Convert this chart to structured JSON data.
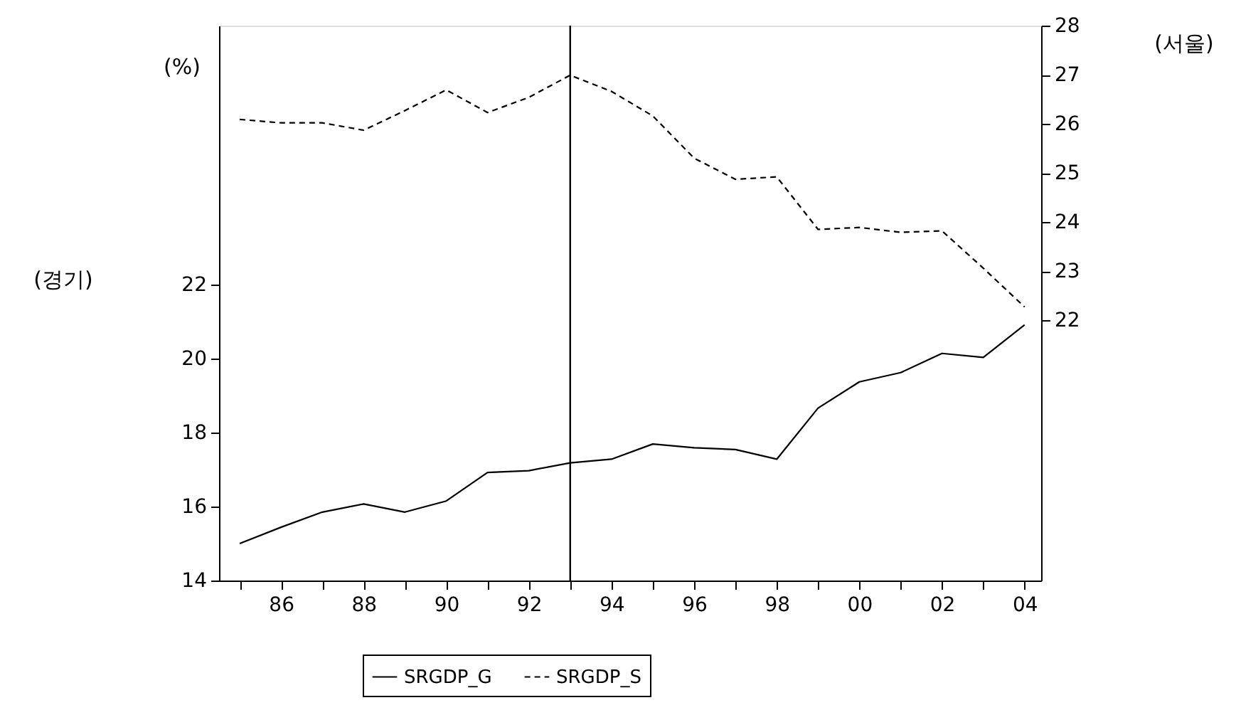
{
  "chart_data": {
    "type": "line",
    "ylabel": "(경기)",
    "y2label": "(서울)",
    "annotations": [
      "(%)"
    ],
    "x": [
      1985,
      1986,
      1987,
      1988,
      1989,
      1990,
      1991,
      1992,
      1993,
      1994,
      1995,
      1996,
      1997,
      1998,
      1999,
      2000,
      2001,
      2002,
      2003,
      2004
    ],
    "series": [
      {
        "name": "SRGDP_G",
        "color": "#000000",
        "line_style": "solid",
        "values": [
          15.0,
          15.44,
          15.85,
          16.07,
          15.85,
          16.15,
          16.92,
          16.97,
          17.18,
          17.28,
          17.69,
          17.59,
          17.54,
          17.28,
          18.66,
          19.37,
          19.62,
          20.14,
          20.03,
          20.91
        ]
      },
      {
        "name": "SRGDP_S",
        "color": "#000000",
        "line_style": "dashed",
        "axis": "y2",
        "values": [
          26.09,
          26.02,
          26.02,
          25.87,
          26.27,
          26.69,
          26.23,
          26.54,
          26.99,
          26.66,
          26.16,
          25.3,
          24.87,
          24.92,
          23.85,
          23.89,
          23.79,
          23.82,
          23.06,
          22.27
        ]
      }
    ],
    "xlim": [
      1984.5,
      2004.4
    ],
    "xticks": [
      {
        "value": 1985,
        "label": null
      },
      {
        "value": 1986,
        "label": "86"
      },
      {
        "value": 1987,
        "label": null
      },
      {
        "value": 1988,
        "label": "88"
      },
      {
        "value": 1989,
        "label": null
      },
      {
        "value": 1990,
        "label": "90"
      },
      {
        "value": 1991,
        "label": null
      },
      {
        "value": 1992,
        "label": "92"
      },
      {
        "value": 1993,
        "label": null
      },
      {
        "value": 1994,
        "label": "94"
      },
      {
        "value": 1995,
        "label": null
      },
      {
        "value": 1996,
        "label": "96"
      },
      {
        "value": 1997,
        "label": null
      },
      {
        "value": 1998,
        "label": "98"
      },
      {
        "value": 1999,
        "label": null
      },
      {
        "value": 2000,
        "label": "00"
      },
      {
        "value": 2001,
        "label": null
      },
      {
        "value": 2002,
        "label": "02"
      },
      {
        "value": 2003,
        "label": null
      },
      {
        "value": 2004,
        "label": "04"
      }
    ],
    "ylim": [
      14,
      29
    ],
    "yticks": [
      14,
      16,
      18,
      20,
      22
    ],
    "y2lim": [
      16.7,
      28
    ],
    "y2ticks": [
      22,
      23,
      24,
      25,
      26,
      27,
      28
    ],
    "ref_lines": [
      {
        "axis": "x",
        "value": 1993,
        "color": "#000000"
      }
    ],
    "grid": false,
    "legend": "bottom"
  }
}
